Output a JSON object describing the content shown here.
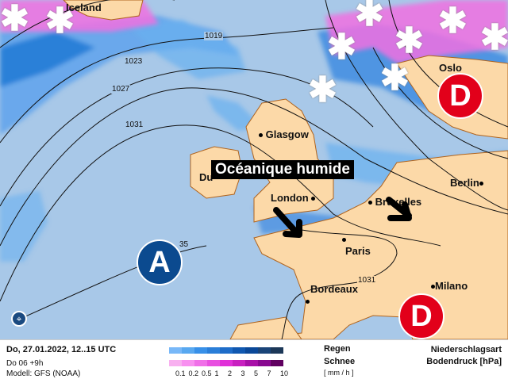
{
  "map": {
    "cities": [
      {
        "name": "Iceland"
      },
      {
        "name": "Oslo"
      },
      {
        "name": "Glasgow"
      },
      {
        "name": "Du"
      },
      {
        "name": "London"
      },
      {
        "name": "Bruxelles"
      },
      {
        "name": "Berlin"
      },
      {
        "name": "Paris"
      },
      {
        "name": "Bordeaux"
      },
      {
        "name": "Milano"
      }
    ],
    "isobars": [
      "1019",
      "1023",
      "1027",
      "1031",
      "1031",
      "35"
    ],
    "pressure_systems": [
      {
        "label": "D",
        "type": "low",
        "color": "#e2001a"
      },
      {
        "label": "D",
        "type": "low",
        "color": "#e2001a"
      },
      {
        "label": "A",
        "type": "high",
        "color": "#0b4a8f"
      }
    ],
    "annotation": "Océanique humide",
    "snow_icon": "snowflake-icon",
    "colors": {
      "sea": "#a8c8e8",
      "land": "#fcd9a8",
      "rain": "#4a90e0",
      "snow": "#f060e0"
    }
  },
  "legend": {
    "date": "Do, 27.01.2022, 12..15 UTC",
    "run": "Do 06 +9h",
    "model": "Modell: GFS (NOAA)",
    "rain_label": "Regen",
    "snow_label": "Schnee",
    "unit": "[ mm / h ]",
    "ticks": [
      "0.1",
      "0.2",
      "0.5",
      "1",
      "2",
      "3",
      "5",
      "7",
      "10"
    ],
    "rain_colors": [
      "#78b8f8",
      "#58a8f0",
      "#3890e8",
      "#2a7ed8",
      "#1e6cc8",
      "#1058b0",
      "#0a4898",
      "#1a4478",
      "#1c3858"
    ],
    "snow_colors": [
      "#f8b0f0",
      "#f890f0",
      "#f070e8",
      "#e850e0",
      "#e030d8",
      "#c820c0",
      "#a810a8",
      "#880890",
      "#600060"
    ],
    "title1": "Niederschlagsart",
    "title2": "Bodendruck [hPa]"
  }
}
